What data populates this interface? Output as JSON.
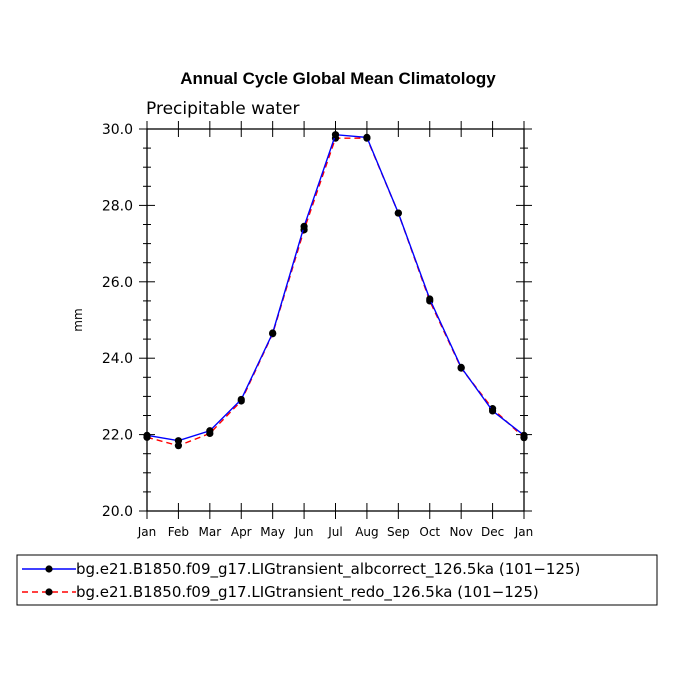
{
  "chart_data": {
    "type": "line",
    "title": "Annual Cycle Global Mean Climatology",
    "subtitle": "Precipitable water",
    "xlabel": "",
    "ylabel": "mm",
    "ylim": [
      20.0,
      30.0
    ],
    "yticks": [
      "20.0",
      "22.0",
      "24.0",
      "26.0",
      "28.0",
      "30.0"
    ],
    "categories": [
      "Jan",
      "Feb",
      "Mar",
      "Apr",
      "May",
      "Jun",
      "Jul",
      "Aug",
      "Sep",
      "Oct",
      "Nov",
      "Dec",
      "Jan"
    ],
    "grid": false,
    "legend_position": "bottom",
    "series": [
      {
        "name": "bg.e21.B1850.f09_g17.LIGtransient_albcorrect_126.5ka (101−125)",
        "color": "#0000ff",
        "dash": "solid",
        "values": [
          21.98,
          21.84,
          22.1,
          22.92,
          24.66,
          27.45,
          29.85,
          29.78,
          27.8,
          25.55,
          23.76,
          22.62,
          21.98
        ]
      },
      {
        "name": "bg.e21.B1850.f09_g17.LIGtransient_redo_126.5ka (101−125)",
        "color": "#ff0000",
        "dash": "dashed",
        "values": [
          21.93,
          21.71,
          22.03,
          22.88,
          24.64,
          27.36,
          29.76,
          29.76,
          27.8,
          25.5,
          23.74,
          22.68,
          21.92
        ]
      }
    ]
  }
}
